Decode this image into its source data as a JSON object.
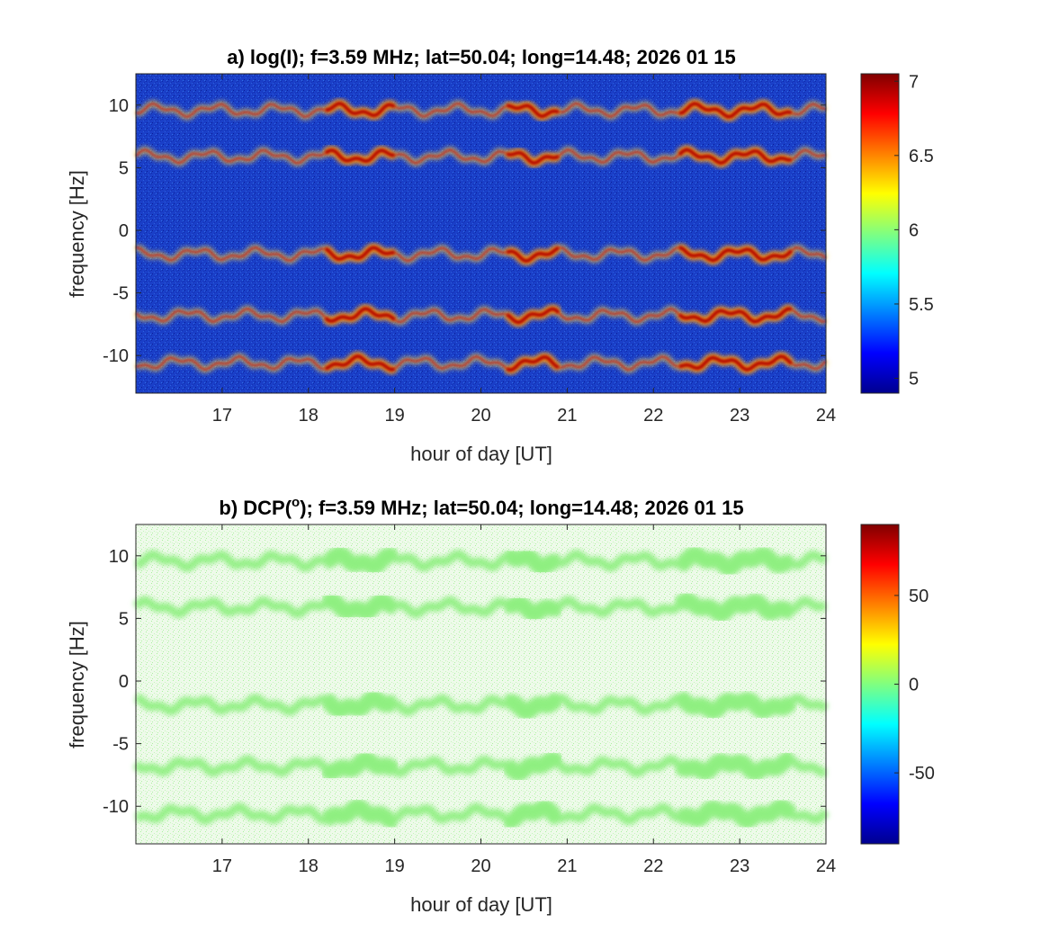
{
  "chart_data": [
    {
      "type": "heatmap",
      "title": "a) log(I); f=3.59 MHz;  lat=50.04; long=14.48; 2026 01 15",
      "xlabel": "hour of day [UT]",
      "ylabel": "frequency [Hz]",
      "xlim": [
        16,
        24
      ],
      "ylim": [
        -13,
        12.5
      ],
      "x_ticks": [
        17,
        18,
        19,
        20,
        21,
        22,
        23,
        24
      ],
      "y_ticks": [
        10,
        5,
        0,
        -5,
        -10
      ],
      "colorbar": {
        "range": [
          4.9,
          7.05
        ],
        "ticks": [
          "7",
          "6.5",
          "6",
          "5.5",
          "5"
        ],
        "tick_values": [
          7,
          6.5,
          6,
          5.5,
          5
        ],
        "colormap": "jet"
      },
      "background_color": "#1a3fc8",
      "features": {
        "bands_hz": [
          9.6,
          5.9,
          -1.9,
          -6.8,
          -10.6
        ],
        "band_color": "#ffd23a",
        "band_core_color": "#c80000",
        "enhanced_intervals_ut": [
          [
            18.2,
            19.0
          ],
          [
            20.3,
            20.9
          ],
          [
            22.3,
            23.6
          ]
        ]
      }
    },
    {
      "type": "heatmap",
      "title": "b) DCP(°); f=3.59 MHz;  lat=50.04; long=14.48; 2026 01 15",
      "title_parts": {
        "pre": "b) DCP(",
        "sup": "o",
        "post": "); f=3.59 MHz;  lat=50.04; long=14.48; 2026 01 15"
      },
      "xlabel": "hour of day [UT]",
      "ylabel": "frequency [Hz]",
      "xlim": [
        16,
        24
      ],
      "ylim": [
        -13,
        12.5
      ],
      "x_ticks": [
        17,
        18,
        19,
        20,
        21,
        22,
        23,
        24
      ],
      "y_ticks": [
        10,
        5,
        0,
        -5,
        -10
      ],
      "colorbar": {
        "range": [
          -90,
          90
        ],
        "ticks": [
          "50",
          "0",
          "-50"
        ],
        "tick_values": [
          50,
          0,
          -50
        ],
        "colormap": "jet"
      },
      "background_color": "#eefaea",
      "features": {
        "bands_hz": [
          9.6,
          5.9,
          -1.9,
          -6.8,
          -10.6
        ],
        "band_color": "#8ef080",
        "enhanced_intervals_ut": [
          [
            18.2,
            19.0
          ],
          [
            20.3,
            20.9
          ],
          [
            22.3,
            23.6
          ]
        ]
      }
    }
  ]
}
